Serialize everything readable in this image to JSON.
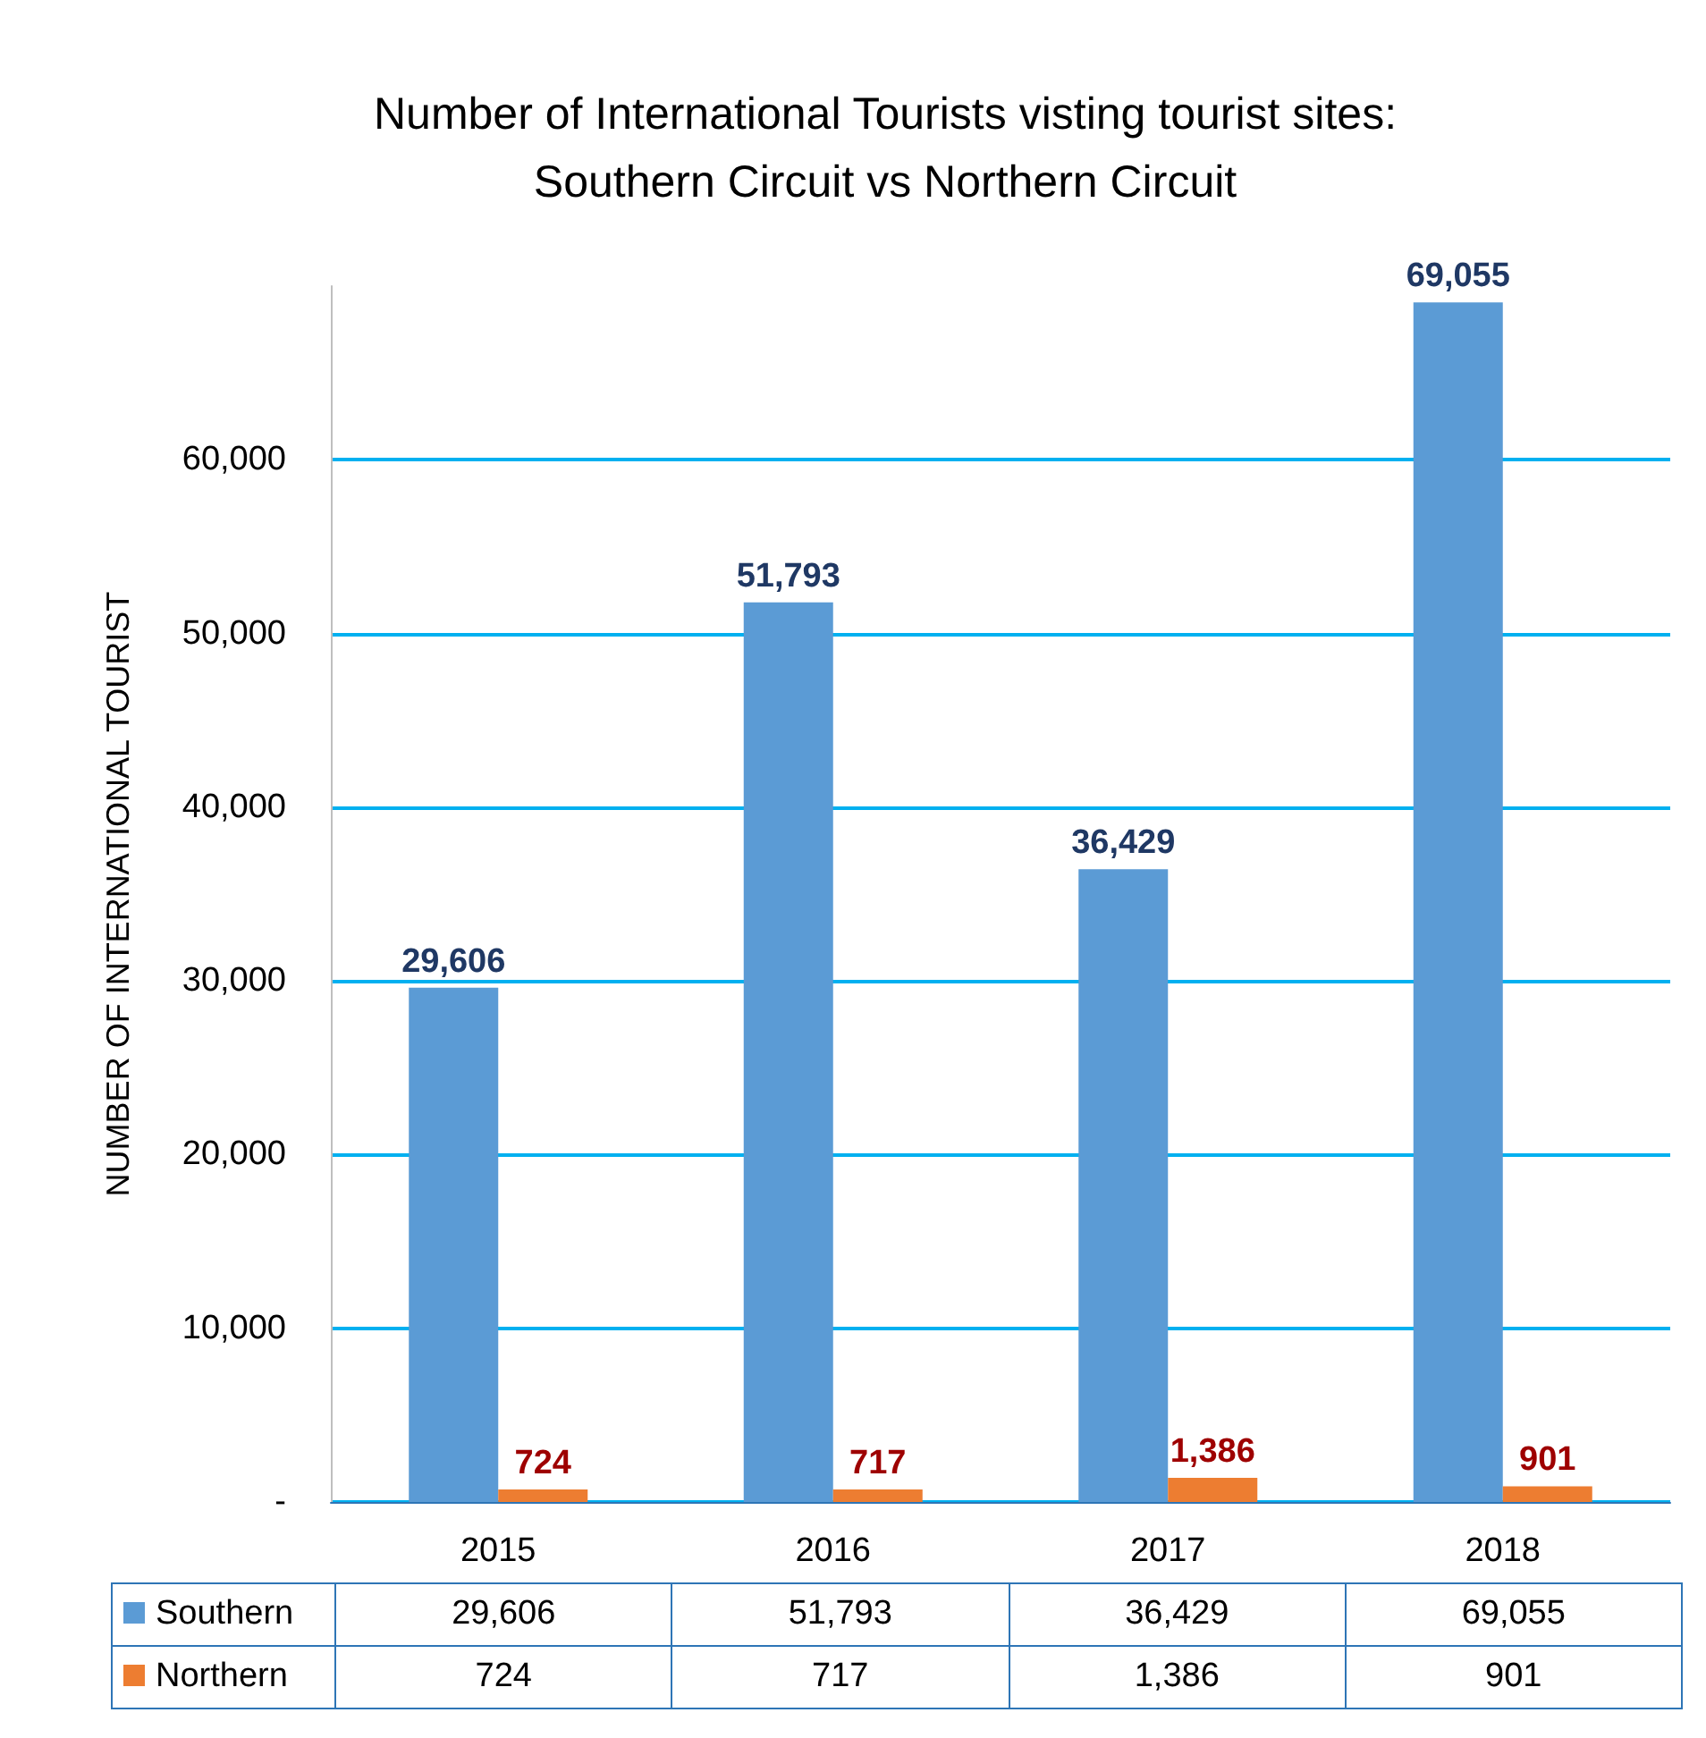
{
  "chart_data": {
    "type": "bar",
    "title": "Number of International Tourists visting tourist sites:\nSouthern Circuit vs Northern Circuit",
    "ylabel": "NUMBER OF INTERNATIONAL TOURIST",
    "categories": [
      "2015",
      "2016",
      "2017",
      "2018"
    ],
    "series": [
      {
        "name": "Southern",
        "color": "#5b9bd5",
        "values": [
          29606,
          51793,
          36429,
          69055
        ],
        "value_labels": [
          "29,606",
          "51,793",
          "36,429",
          "69,055"
        ]
      },
      {
        "name": "Northern",
        "color": "#ed7d31",
        "values": [
          724,
          717,
          1386,
          901
        ],
        "value_labels": [
          "724",
          "717",
          "1,386",
          "901"
        ]
      }
    ],
    "ylim": [
      0,
      70000
    ],
    "yticks": [
      {
        "value": 0,
        "label": "-"
      },
      {
        "value": 10000,
        "label": "10,000"
      },
      {
        "value": 20000,
        "label": "20,000"
      },
      {
        "value": 30000,
        "label": "30,000"
      },
      {
        "value": 40000,
        "label": "40,000"
      },
      {
        "value": 50000,
        "label": "50,000"
      },
      {
        "value": 60000,
        "label": "60,000"
      }
    ],
    "grid": "y",
    "legend": "bottom"
  }
}
